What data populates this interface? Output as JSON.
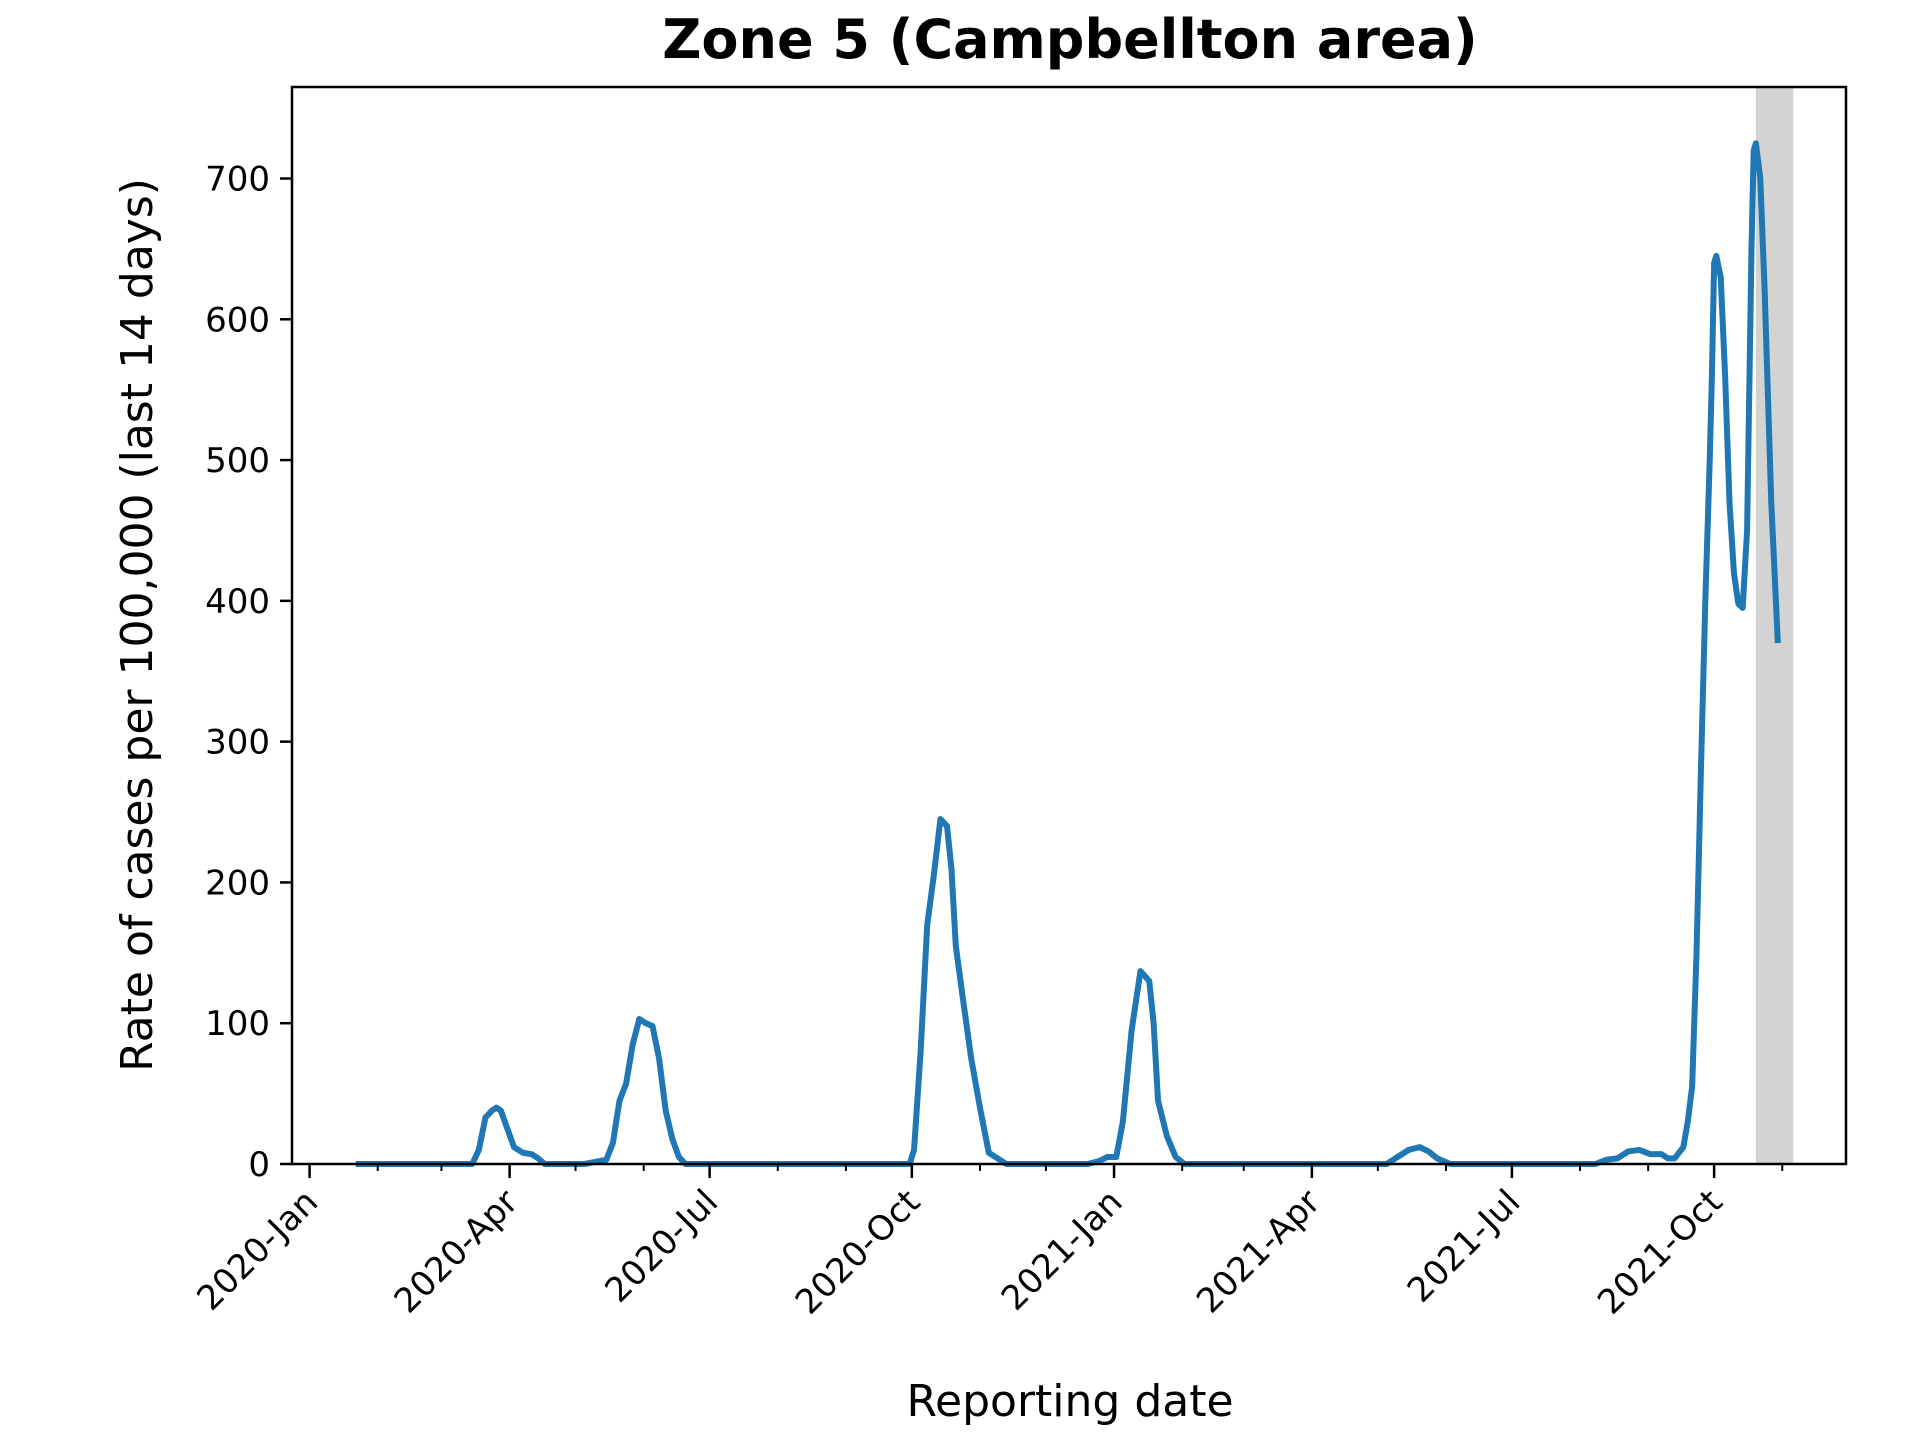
{
  "chart_data": {
    "type": "line",
    "title": "Zone 5 (Campbellton area)",
    "xlabel": "Reporting date",
    "ylabel": "Rate of cases per 100,000 (last 14 days)",
    "x_range": [
      "2019-12-24",
      "2021-11-30"
    ],
    "ylim": [
      0,
      765
    ],
    "grid": false,
    "legend": "none",
    "y_ticks": [
      0,
      100,
      200,
      300,
      400,
      500,
      600,
      700
    ],
    "x_ticks": [
      {
        "date": "2020-01-01",
        "label": "2020-Jan"
      },
      {
        "date": "2020-04-01",
        "label": "2020-Apr"
      },
      {
        "date": "2020-07-01",
        "label": "2020-Jul"
      },
      {
        "date": "2020-10-01",
        "label": "2020-Oct"
      },
      {
        "date": "2021-01-01",
        "label": "2021-Jan"
      },
      {
        "date": "2021-04-01",
        "label": "2021-Apr"
      },
      {
        "date": "2021-07-01",
        "label": "2021-Jul"
      },
      {
        "date": "2021-10-01",
        "label": "2021-Oct"
      }
    ],
    "x_minor_ticks": [
      "2020-02-01",
      "2020-03-01",
      "2020-05-01",
      "2020-06-01",
      "2020-08-01",
      "2020-09-01",
      "2020-11-01",
      "2020-12-01",
      "2021-02-01",
      "2021-03-01",
      "2021-05-01",
      "2021-06-01",
      "2021-08-01",
      "2021-09-01",
      "2021-11-01"
    ],
    "shaded_region": {
      "start": "2021-10-20",
      "end": "2021-11-06",
      "color": "#d3d3d3"
    },
    "line_color": "#1f77b4",
    "series": [
      {
        "x": [
          "2020-01-22",
          "2020-03-12",
          "2020-03-15",
          "2020-03-18",
          "2020-03-21",
          "2020-03-24",
          "2020-03-26",
          "2020-03-28",
          "2020-03-31",
          "2020-04-03",
          "2020-04-07",
          "2020-04-11",
          "2020-04-14",
          "2020-04-17",
          "2020-04-20",
          "2020-04-23",
          "2020-04-25",
          "2020-04-28",
          "2020-05-05",
          "2020-05-15",
          "2020-05-18",
          "2020-05-21",
          "2020-05-24",
          "2020-05-27",
          "2020-05-30",
          "2020-06-02",
          "2020-06-05",
          "2020-06-08",
          "2020-06-11",
          "2020-06-14",
          "2020-06-17",
          "2020-06-20",
          "2020-06-23",
          "2020-06-26",
          "2020-06-29",
          "2020-07-02",
          "2020-07-05",
          "2020-07-10",
          "2020-09-20",
          "2020-09-30",
          "2020-10-02",
          "2020-10-05",
          "2020-10-08",
          "2020-10-11",
          "2020-10-14",
          "2020-10-17",
          "2020-10-19",
          "2020-10-21",
          "2020-10-24",
          "2020-10-28",
          "2020-11-01",
          "2020-11-05",
          "2020-11-09",
          "2020-11-13",
          "2020-11-17",
          "2020-11-21",
          "2020-11-25",
          "2020-12-05",
          "2020-12-20",
          "2020-12-25",
          "2020-12-29",
          "2021-01-02",
          "2021-01-05",
          "2021-01-09",
          "2021-01-13",
          "2021-01-17",
          "2021-01-19",
          "2021-01-21",
          "2021-01-25",
          "2021-01-29",
          "2021-02-02",
          "2021-02-06",
          "2021-02-10",
          "2021-02-14",
          "2021-02-18",
          "2021-03-01",
          "2021-04-15",
          "2021-05-05",
          "2021-05-10",
          "2021-05-15",
          "2021-05-20",
          "2021-05-24",
          "2021-05-28",
          "2021-06-03",
          "2021-06-10",
          "2021-07-20",
          "2021-08-01",
          "2021-08-08",
          "2021-08-13",
          "2021-08-18",
          "2021-08-23",
          "2021-08-28",
          "2021-09-02",
          "2021-09-07",
          "2021-09-10",
          "2021-09-13",
          "2021-09-15",
          "2021-09-17",
          "2021-09-19",
          "2021-09-21",
          "2021-09-23",
          "2021-09-25",
          "2021-09-27",
          "2021-09-29",
          "2021-09-30",
          "2021-10-01",
          "2021-10-02",
          "2021-10-04",
          "2021-10-06",
          "2021-10-08",
          "2021-10-10",
          "2021-10-12",
          "2021-10-14",
          "2021-10-16",
          "2021-10-17",
          "2021-10-18",
          "2021-10-19",
          "2021-10-20",
          "2021-10-22",
          "2021-10-24",
          "2021-10-27",
          "2021-10-30"
        ],
        "y": [
          0,
          0,
          0,
          10,
          33,
          38,
          40,
          38,
          25,
          12,
          8,
          7,
          4,
          0,
          0,
          0,
          0,
          0,
          0,
          3,
          15,
          45,
          57,
          85,
          103,
          100,
          98,
          75,
          38,
          18,
          5,
          0,
          0,
          0,
          0,
          0,
          0,
          0,
          0,
          0,
          10,
          80,
          170,
          205,
          245,
          240,
          210,
          155,
          120,
          75,
          40,
          8,
          4,
          0,
          0,
          0,
          0,
          0,
          0,
          2,
          5,
          5,
          30,
          95,
          137,
          130,
          100,
          45,
          20,
          5,
          0,
          0,
          0,
          0,
          0,
          0,
          0,
          0,
          5,
          10,
          12,
          9,
          4,
          0,
          0,
          0,
          0,
          0,
          3,
          4,
          9,
          10,
          7,
          7,
          4,
          4,
          8,
          12,
          30,
          55,
          150,
          280,
          400,
          500,
          560,
          640,
          645,
          630,
          560,
          470,
          420,
          398,
          395,
          450,
          550,
          650,
          720,
          725,
          700,
          620,
          470,
          370
        ]
      }
    ]
  }
}
